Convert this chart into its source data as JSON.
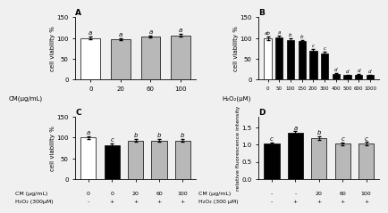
{
  "A": {
    "categories": [
      "0",
      "20",
      "60",
      "100"
    ],
    "values": [
      100,
      98,
      104,
      106
    ],
    "errors": [
      3,
      2,
      2,
      3
    ],
    "colors": [
      "white",
      "#b8b8b8",
      "#b8b8b8",
      "#b8b8b8"
    ],
    "letters": [
      "a",
      "a",
      "a",
      "a"
    ],
    "xlabel": "CM(μg/mL)",
    "ylabel": "cell viability %",
    "ylim": [
      0,
      150
    ],
    "yticks": [
      0,
      50,
      100,
      150
    ],
    "title": "A"
  },
  "B": {
    "categories": [
      "0",
      "50",
      "100",
      "150",
      "200",
      "300",
      "400",
      "500",
      "600",
      "1000"
    ],
    "values": [
      100,
      102,
      95,
      93,
      70,
      62,
      14,
      11,
      12,
      11
    ],
    "errors": [
      4,
      3,
      5,
      3,
      4,
      4,
      2,
      1,
      1,
      1
    ],
    "colors": [
      "white",
      "black",
      "black",
      "black",
      "black",
      "black",
      "black",
      "black",
      "black",
      "black"
    ],
    "letters": [
      "ab",
      "a",
      "b",
      "b",
      "c",
      "c",
      "d",
      "d",
      "d",
      "d"
    ],
    "xlabel": "H₂O₂(μM)",
    "ylabel": "cell viability %",
    "ylim": [
      0,
      150
    ],
    "yticks": [
      0,
      50,
      100,
      150
    ],
    "title": "B"
  },
  "C": {
    "categories": [
      "0",
      "0",
      "20",
      "60",
      "100"
    ],
    "values": [
      100,
      82,
      93,
      93,
      93
    ],
    "errors": [
      3,
      3,
      3,
      3,
      3
    ],
    "colors": [
      "white",
      "black",
      "#b8b8b8",
      "#b8b8b8",
      "#b8b8b8"
    ],
    "letters": [
      "a",
      "c",
      "b",
      "b",
      "b"
    ],
    "xlabel_rows": [
      "CM (μg/mL)",
      "H₂O₂ (300μM)"
    ],
    "xlabel_vals": [
      [
        "0",
        "0",
        "20",
        "60",
        "100"
      ],
      [
        "-",
        "+",
        "+",
        "+",
        "+"
      ]
    ],
    "ylabel": "cell viability %",
    "ylim": [
      0,
      150
    ],
    "yticks": [
      0,
      50,
      100,
      150
    ],
    "title": "C"
  },
  "D": {
    "categories": [
      "-",
      "-",
      "20",
      "60",
      "100"
    ],
    "values": [
      1.02,
      1.33,
      1.18,
      1.02,
      1.02
    ],
    "errors": [
      0.03,
      0.05,
      0.05,
      0.04,
      0.05
    ],
    "colors": [
      "black",
      "black",
      "#b8b8b8",
      "#b8b8b8",
      "#b8b8b8"
    ],
    "letters": [
      "c",
      "a",
      "b",
      "c",
      "c"
    ],
    "xlabel_rows": [
      "CM (μg/mL)",
      "H₂O₂ (300 μM)"
    ],
    "xlabel_vals": [
      [
        "-",
        "-",
        "20",
        "60",
        "100"
      ],
      [
        "-",
        "+",
        "+",
        "+",
        "+"
      ]
    ],
    "ylabel": "relative fluorescence intensity",
    "ylim": [
      0.0,
      1.8
    ],
    "yticks": [
      0.0,
      0.5,
      1.0,
      1.5
    ],
    "title": "D"
  },
  "bg_color": "#f0f0f0"
}
